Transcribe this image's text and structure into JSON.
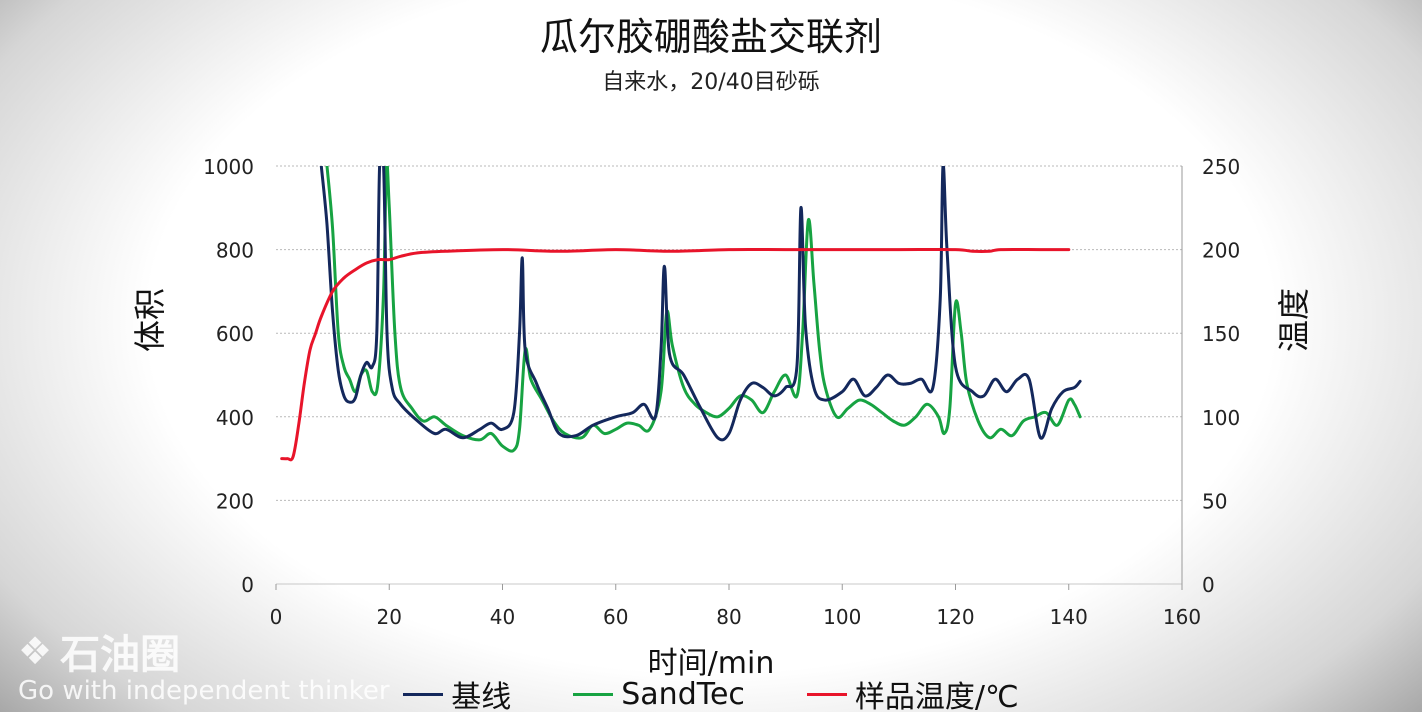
{
  "chart_data": {
    "type": "line",
    "title": "瓜尔胶硼酸盐交联剂",
    "subtitle": "自来水，20/40目砂砾",
    "xlabel": "时间/min",
    "ylabel_left": "体积",
    "ylabel_right": "温度",
    "xlim": [
      0,
      160
    ],
    "ylim_left": [
      0,
      1000
    ],
    "ylim_right": [
      0,
      250
    ],
    "xticks": [
      "0",
      "20",
      "40",
      "60",
      "80",
      "100",
      "120",
      "140",
      "160"
    ],
    "yticks_left": [
      "0",
      "200",
      "400",
      "600",
      "800",
      "1000"
    ],
    "yticks_right": [
      "0",
      "50",
      "100",
      "150",
      "200",
      "250"
    ],
    "grid": "horizontal",
    "legend_position": "bottom",
    "series": [
      {
        "name": "基线",
        "axis": "left",
        "color": "#14285c",
        "points": [
          [
            8,
            1000
          ],
          [
            9,
            860
          ],
          [
            10,
            650
          ],
          [
            11,
            510
          ],
          [
            12,
            450
          ],
          [
            13,
            435
          ],
          [
            14,
            445
          ],
          [
            15,
            500
          ],
          [
            16,
            530
          ],
          [
            17,
            520
          ],
          [
            17.8,
            600
          ],
          [
            18.3,
            1000
          ],
          [
            19,
            1000
          ],
          [
            19.6,
            600
          ],
          [
            20.5,
            470
          ],
          [
            22,
            430
          ],
          [
            25,
            390
          ],
          [
            28,
            360
          ],
          [
            30,
            370
          ],
          [
            33,
            350
          ],
          [
            36,
            370
          ],
          [
            38,
            385
          ],
          [
            40,
            370
          ],
          [
            42,
            410
          ],
          [
            43,
            600
          ],
          [
            43.5,
            780
          ],
          [
            44,
            560
          ],
          [
            46,
            480
          ],
          [
            48,
            420
          ],
          [
            50,
            360
          ],
          [
            53,
            355
          ],
          [
            56,
            380
          ],
          [
            60,
            400
          ],
          [
            63,
            410
          ],
          [
            65,
            430
          ],
          [
            67,
            400
          ],
          [
            68,
            560
          ],
          [
            68.6,
            760
          ],
          [
            69.5,
            550
          ],
          [
            72,
            500
          ],
          [
            75,
            420
          ],
          [
            78,
            350
          ],
          [
            80,
            360
          ],
          [
            82,
            440
          ],
          [
            84,
            480
          ],
          [
            86,
            470
          ],
          [
            88,
            450
          ],
          [
            90,
            470
          ],
          [
            92,
            520
          ],
          [
            92.7,
            900
          ],
          [
            93.5,
            620
          ],
          [
            95,
            470
          ],
          [
            97,
            440
          ],
          [
            100,
            460
          ],
          [
            102,
            490
          ],
          [
            104,
            450
          ],
          [
            106,
            470
          ],
          [
            108,
            500
          ],
          [
            110,
            480
          ],
          [
            112,
            480
          ],
          [
            114,
            490
          ],
          [
            116,
            470
          ],
          [
            117.3,
            680
          ],
          [
            117.8,
            1000
          ],
          [
            118.5,
            800
          ],
          [
            120,
            520
          ],
          [
            123,
            460
          ],
          [
            125,
            450
          ],
          [
            127,
            490
          ],
          [
            129,
            460
          ],
          [
            131,
            490
          ],
          [
            133,
            490
          ],
          [
            135,
            350
          ],
          [
            137,
            420
          ],
          [
            139,
            460
          ],
          [
            141,
            470
          ],
          [
            142,
            485
          ]
        ]
      },
      {
        "name": "SandTec",
        "axis": "left",
        "color": "#17a342",
        "points": [
          [
            9,
            1000
          ],
          [
            10,
            850
          ],
          [
            11,
            600
          ],
          [
            12,
            520
          ],
          [
            13,
            490
          ],
          [
            14,
            460
          ],
          [
            15,
            500
          ],
          [
            16,
            510
          ],
          [
            17,
            460
          ],
          [
            18,
            480
          ],
          [
            19,
            700
          ],
          [
            19.5,
            1000
          ],
          [
            20,
            900
          ],
          [
            21,
            600
          ],
          [
            22,
            470
          ],
          [
            24,
            420
          ],
          [
            26,
            390
          ],
          [
            28,
            400
          ],
          [
            30,
            380
          ],
          [
            33,
            355
          ],
          [
            36,
            345
          ],
          [
            38,
            360
          ],
          [
            40,
            330
          ],
          [
            42,
            320
          ],
          [
            43,
            370
          ],
          [
            44,
            560
          ],
          [
            45,
            490
          ],
          [
            47,
            440
          ],
          [
            49,
            390
          ],
          [
            51,
            360
          ],
          [
            54,
            350
          ],
          [
            56,
            380
          ],
          [
            58,
            360
          ],
          [
            60,
            370
          ],
          [
            62,
            385
          ],
          [
            64,
            380
          ],
          [
            66,
            370
          ],
          [
            68,
            460
          ],
          [
            69,
            650
          ],
          [
            70,
            570
          ],
          [
            72,
            470
          ],
          [
            74,
            430
          ],
          [
            76,
            410
          ],
          [
            78,
            400
          ],
          [
            80,
            420
          ],
          [
            82,
            450
          ],
          [
            84,
            440
          ],
          [
            86,
            410
          ],
          [
            88,
            460
          ],
          [
            90,
            500
          ],
          [
            92,
            450
          ],
          [
            93,
            600
          ],
          [
            94,
            870
          ],
          [
            95,
            720
          ],
          [
            96,
            560
          ],
          [
            97,
            470
          ],
          [
            99,
            400
          ],
          [
            101,
            420
          ],
          [
            103,
            440
          ],
          [
            105,
            430
          ],
          [
            107,
            410
          ],
          [
            109,
            390
          ],
          [
            111,
            380
          ],
          [
            113,
            400
          ],
          [
            115,
            430
          ],
          [
            117,
            400
          ],
          [
            118,
            360
          ],
          [
            119,
            420
          ],
          [
            120,
            670
          ],
          [
            121,
            600
          ],
          [
            122,
            480
          ],
          [
            124,
            390
          ],
          [
            126,
            350
          ],
          [
            128,
            370
          ],
          [
            130,
            355
          ],
          [
            132,
            390
          ],
          [
            134,
            400
          ],
          [
            136,
            410
          ],
          [
            138,
            380
          ],
          [
            140,
            440
          ],
          [
            141,
            430
          ],
          [
            142,
            400
          ]
        ]
      },
      {
        "name": "样品温度/℃",
        "axis": "right",
        "color": "#e8142a",
        "points": [
          [
            1,
            75
          ],
          [
            2,
            75
          ],
          [
            3,
            76
          ],
          [
            4,
            95
          ],
          [
            5,
            120
          ],
          [
            6,
            140
          ],
          [
            7,
            150
          ],
          [
            8,
            160
          ],
          [
            10,
            175
          ],
          [
            12,
            183
          ],
          [
            14,
            188
          ],
          [
            16,
            192
          ],
          [
            18,
            194
          ],
          [
            20,
            194
          ],
          [
            22,
            196
          ],
          [
            25,
            198
          ],
          [
            30,
            199
          ],
          [
            40,
            200
          ],
          [
            50,
            199
          ],
          [
            60,
            200
          ],
          [
            70,
            199
          ],
          [
            80,
            200
          ],
          [
            90,
            200
          ],
          [
            100,
            200
          ],
          [
            110,
            200
          ],
          [
            120,
            200
          ],
          [
            123,
            199
          ],
          [
            126,
            199
          ],
          [
            128,
            200
          ],
          [
            135,
            200
          ],
          [
            140,
            200
          ]
        ]
      }
    ]
  },
  "watermark": {
    "logo_icon": "wechat-icon",
    "logo_text": "石油圈",
    "slogan": "Go with independent thinker"
  }
}
